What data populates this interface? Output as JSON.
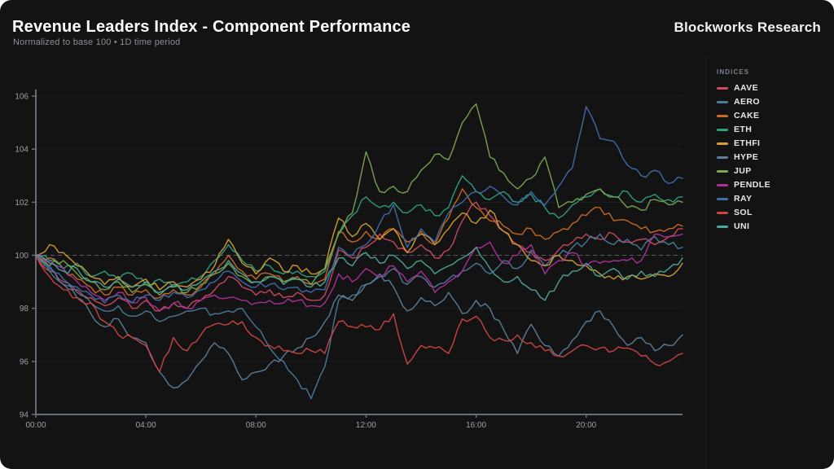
{
  "header": {
    "title": "Revenue Leaders Index - Component Performance",
    "subtitle": "Normalized to base 100 • 1D time period",
    "brand": "Blockworks Research"
  },
  "legend": {
    "title": "INDICES"
  },
  "colors": {
    "card_bg": "#131314",
    "axis": "#666e79",
    "tick_text": "#9aa1ab",
    "grid": "#ffffff0a",
    "baseline": "#8a8f98",
    "title_text": "#ffffff",
    "subtitle_text": "#8a8f96"
  },
  "chart_data": {
    "type": "line",
    "title": "Revenue Leaders Index - Component Performance",
    "subtitle": "Normalized to base 100 • 1D time period",
    "xlabel": "",
    "ylabel": "",
    "x_unit": "hours",
    "x_start": 0,
    "x_end": 23.5,
    "x_step": 0.5,
    "ylim": [
      94,
      106
    ],
    "y_ticks": [
      94,
      96,
      98,
      100,
      102,
      104,
      106
    ],
    "x_tick_hours": [
      0,
      4,
      8,
      12,
      16,
      20
    ],
    "x_tick_labels": [
      "00:00",
      "04:00",
      "08:00",
      "12:00",
      "16:00",
      "20:00"
    ],
    "baseline": 100,
    "grid": "horizontal-faint",
    "legend_position": "right",
    "series": [
      {
        "name": "AAVE",
        "color": "#cf4a5e",
        "values": [
          100,
          99.4,
          99.0,
          98.7,
          98.4,
          98.1,
          98.4,
          98.0,
          98.3,
          97.9,
          98.2,
          98.0,
          98.3,
          98.7,
          99.2,
          98.8,
          98.5,
          98.7,
          98.4,
          98.6,
          98.3,
          98.5,
          100.2,
          99.9,
          100.3,
          100.8,
          100.5,
          100.1,
          100.4,
          99.9,
          100.2,
          101.3,
          102.0,
          101.5,
          100.9,
          100.4,
          100.1,
          99.8,
          100.2,
          100.5,
          100.8,
          100.6,
          100.8,
          100.5,
          100.6,
          100.4,
          100.7,
          101.0
        ]
      },
      {
        "name": "AERO",
        "color": "#4a7d9e",
        "values": [
          100,
          99.4,
          98.9,
          98.6,
          98.2,
          97.9,
          98.1,
          97.7,
          97.9,
          97.5,
          97.7,
          97.9,
          98.0,
          97.8,
          97.9,
          98.0,
          97.3,
          96.5,
          96.0,
          95.3,
          94.6,
          95.8,
          98.3,
          98.5,
          98.9,
          99.2,
          99.5,
          98.9,
          99.2,
          98.8,
          99.1,
          99.4,
          99.7,
          99.3,
          99.8,
          99.5,
          100.2,
          99.6,
          100.0,
          100.3,
          100.5,
          100.8,
          100.4,
          100.6,
          100.2,
          100.7,
          100.4,
          100.3
        ]
      },
      {
        "name": "CAKE",
        "color": "#cf6a24",
        "values": [
          100,
          99.9,
          99.5,
          99.1,
          98.8,
          98.5,
          98.8,
          98.5,
          98.7,
          98.4,
          98.7,
          98.5,
          98.8,
          99.3,
          100.0,
          99.4,
          99.1,
          99.3,
          99.0,
          99.2,
          98.9,
          99.1,
          100.9,
          100.5,
          100.9,
          100.6,
          101.0,
          100.5,
          100.9,
          100.4,
          101.4,
          102.5,
          101.8,
          101.3,
          101.1,
          100.8,
          101.0,
          100.6,
          100.9,
          101.2,
          101.5,
          101.8,
          101.3,
          101.3,
          101.0,
          100.9,
          101.0,
          101.1
        ]
      },
      {
        "name": "ETH",
        "color": "#2fa183",
        "values": [
          100,
          99.8,
          99.5,
          99.7,
          99.2,
          99.4,
          99.1,
          99.3,
          98.9,
          99.1,
          98.8,
          99.0,
          99.2,
          99.8,
          100.4,
          99.8,
          99.4,
          99.6,
          99.3,
          99.4,
          99.2,
          99.4,
          100.8,
          101.5,
          102.2,
          101.8,
          102.0,
          101.6,
          101.9,
          101.5,
          101.8,
          103.0,
          102.4,
          102.1,
          102.4,
          102.0,
          102.3,
          101.8,
          101.4,
          101.9,
          102.2,
          102.5,
          102.2,
          102.4,
          102.0,
          102.3,
          102.1,
          102.2
        ]
      },
      {
        "name": "ETHFI",
        "color": "#d4a030",
        "values": [
          100,
          100.4,
          100.1,
          99.6,
          99.2,
          98.9,
          99.2,
          98.8,
          99.1,
          98.7,
          99.0,
          98.8,
          99.1,
          99.6,
          100.6,
          99.7,
          99.3,
          99.9,
          99.4,
          99.6,
          99.3,
          99.5,
          101.4,
          100.7,
          101.2,
          100.6,
          101.0,
          100.1,
          100.8,
          100.4,
          101.0,
          101.6,
          101.2,
          101.7,
          100.9,
          100.4,
          99.8,
          99.6,
          100.0,
          99.8,
          99.6,
          99.3,
          99.1,
          99.2,
          99.1,
          99.3,
          99.2,
          99.7
        ]
      },
      {
        "name": "HYPE",
        "color": "#5d7f9b",
        "values": [
          100,
          99.5,
          98.9,
          98.4,
          97.8,
          97.3,
          97.6,
          96.9,
          96.7,
          95.6,
          95.0,
          95.3,
          96.0,
          96.7,
          96.3,
          95.3,
          95.6,
          95.9,
          96.2,
          96.5,
          96.9,
          97.5,
          98.5,
          98.3,
          98.9,
          99.3,
          98.8,
          97.9,
          98.4,
          98.1,
          98.6,
          97.8,
          98.3,
          98.0,
          97.2,
          96.3,
          97.4,
          96.6,
          96.2,
          96.8,
          97.5,
          97.9,
          97.3,
          96.6,
          96.9,
          96.4,
          96.6,
          97.0
        ]
      },
      {
        "name": "JUP",
        "color": "#7aa84f",
        "values": [
          100,
          99.6,
          99.8,
          99.3,
          99.0,
          98.7,
          99.0,
          98.6,
          98.9,
          98.5,
          98.8,
          98.6,
          98.9,
          99.3,
          99.7,
          99.2,
          99.0,
          99.2,
          99.0,
          99.1,
          98.9,
          99.5,
          100.8,
          101.6,
          103.9,
          102.4,
          102.6,
          102.4,
          103.2,
          103.8,
          103.6,
          105.0,
          105.7,
          103.7,
          103.1,
          102.5,
          102.9,
          103.7,
          101.8,
          102.0,
          102.3,
          102.5,
          102.2,
          101.8,
          101.7,
          102.1,
          101.9,
          102.0
        ]
      },
      {
        "name": "PENDLE",
        "color": "#b0309b",
        "values": [
          100,
          99.8,
          99.5,
          99.0,
          98.6,
          98.3,
          98.6,
          98.2,
          98.4,
          97.9,
          98.2,
          98.0,
          98.3,
          98.5,
          98.4,
          98.3,
          98.2,
          98.3,
          98.2,
          98.3,
          98.1,
          98.2,
          99.3,
          99.0,
          99.5,
          99.2,
          99.6,
          99.0,
          99.4,
          98.6,
          99.0,
          99.4,
          100.3,
          100.5,
          99.7,
          100.0,
          100.4,
          99.3,
          99.8,
          100.1,
          99.6,
          99.7,
          99.8,
          99.8,
          99.8,
          100.8,
          100.7,
          100.8
        ]
      },
      {
        "name": "RAY",
        "color": "#3f6fad",
        "values": [
          100,
          99.6,
          99.1,
          98.8,
          98.5,
          98.2,
          98.5,
          98.2,
          98.5,
          98.3,
          98.6,
          98.4,
          98.7,
          99.0,
          99.4,
          99.0,
          98.8,
          98.9,
          98.7,
          98.8,
          98.6,
          98.7,
          100.3,
          100.0,
          100.4,
          101.2,
          101.9,
          100.3,
          101.0,
          100.5,
          101.6,
          102.0,
          102.4,
          102.6,
          102.2,
          101.9,
          102.4,
          101.9,
          102.6,
          103.3,
          105.6,
          104.4,
          104.3,
          103.4,
          103.0,
          103.2,
          102.7,
          102.9
        ]
      },
      {
        "name": "SOL",
        "color": "#d24444",
        "values": [
          100,
          99.2,
          98.7,
          98.4,
          98.2,
          97.5,
          97.0,
          96.9,
          96.6,
          95.6,
          96.9,
          96.4,
          97.0,
          97.4,
          97.4,
          97.5,
          96.9,
          96.6,
          96.4,
          96.3,
          96.4,
          96.3,
          97.5,
          97.3,
          97.3,
          97.2,
          97.8,
          95.9,
          96.6,
          96.5,
          96.3,
          97.6,
          97.7,
          96.9,
          96.8,
          97.0,
          96.7,
          96.4,
          96.2,
          96.4,
          96.6,
          96.5,
          96.4,
          96.5,
          96.2,
          95.9,
          96.0,
          96.3
        ]
      },
      {
        "name": "UNI",
        "color": "#4fa89e",
        "values": [
          100,
          99.7,
          99.4,
          99.5,
          99.0,
          98.8,
          99.1,
          98.8,
          99.0,
          98.6,
          98.9,
          98.7,
          99.0,
          99.4,
          99.8,
          99.3,
          99.0,
          99.2,
          98.9,
          99.1,
          98.8,
          99.0,
          99.9,
          99.6,
          100.1,
          99.7,
          100.0,
          99.5,
          99.8,
          99.3,
          99.6,
          99.9,
          100.3,
          99.5,
          99.0,
          99.2,
          98.7,
          98.3,
          99.0,
          99.4,
          99.7,
          99.2,
          99.5,
          99.1,
          99.4,
          99.2,
          99.5,
          99.9
        ]
      }
    ]
  }
}
